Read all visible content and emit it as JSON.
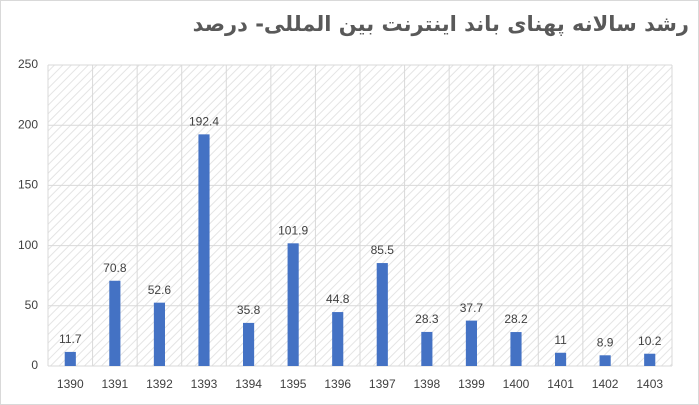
{
  "chart_data": {
    "type": "bar",
    "title": "رشد سالانه پهنای باند اینترنت بین المللی- درصد",
    "categories": [
      "1390",
      "1391",
      "1392",
      "1393",
      "1394",
      "1395",
      "1396",
      "1397",
      "1398",
      "1399",
      "1400",
      "1401",
      "1402",
      "1403"
    ],
    "values": [
      11.7,
      70.8,
      52.6,
      192.4,
      35.8,
      101.9,
      44.8,
      85.5,
      28.3,
      37.7,
      28.2,
      11,
      8.9,
      10.2
    ],
    "color": "#4472c4",
    "ylim": [
      0,
      250
    ],
    "yticks": [
      0,
      50,
      100,
      150,
      200,
      250
    ],
    "grid": true
  }
}
